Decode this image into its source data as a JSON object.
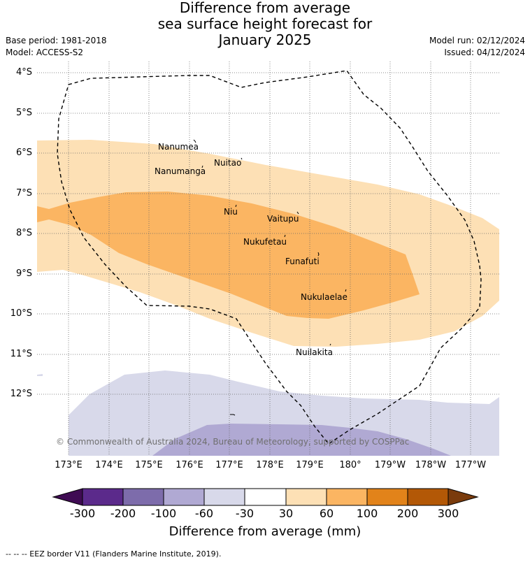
{
  "title": {
    "line1": "Difference from average",
    "line2": "sea surface height forecast for",
    "line3": "January 2025"
  },
  "meta": {
    "base_period": "Base period: 1981-2018",
    "model": "Model: ACCESS-S2",
    "model_run": "Model run: 02/12/2024",
    "issued": "Issued: 04/12/2024"
  },
  "map": {
    "lat_labels": [
      "4°S",
      "5°S",
      "6°S",
      "7°S",
      "8°S",
      "9°S",
      "10°S",
      "11°S",
      "12°S"
    ],
    "lon_labels": [
      "173°E",
      "174°E",
      "175°E",
      "176°E",
      "177°E",
      "178°E",
      "179°E",
      "180°",
      "179°W",
      "178°W",
      "177°W"
    ],
    "places": [
      "Nanumea",
      "Nuitao",
      "Nanumanga",
      "Niu",
      "Vaitupu",
      "Nukufetau",
      "Funafuti",
      "Nukulaelae",
      "Nuilakita"
    ],
    "credit": "© Commonwealth of Australia 2024, Bureau of Meteorology, supported by COSPPac",
    "colors": {
      "c30_60": "#fde0b5",
      "c60_100": "#fbb562",
      "cm30_m60": "#d8d9ea",
      "cm60_m100": "#b0a9d3"
    }
  },
  "colorbar": {
    "labels": [
      "-300",
      "-200",
      "-100",
      "-60",
      "-30",
      "30",
      "60",
      "100",
      "200",
      "300"
    ],
    "colors": [
      "#3f0b53",
      "#5b2a8b",
      "#7d6cab",
      "#b0a9d3",
      "#d8d9ea",
      "#ffffff",
      "#fde0b5",
      "#fbb562",
      "#e2831a",
      "#b35806",
      "#7a3b0c"
    ],
    "title": "Difference from average (mm)"
  },
  "footer": {
    "legend": "-- -- -- EEZ border V11 (Flanders Marine Institute, 2019)."
  }
}
